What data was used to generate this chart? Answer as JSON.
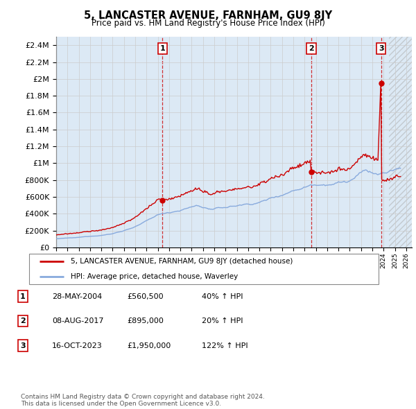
{
  "title": "5, LANCASTER AVENUE, FARNHAM, GU9 8JY",
  "subtitle": "Price paid vs. HM Land Registry's House Price Index (HPI)",
  "ytick_values": [
    0,
    200000,
    400000,
    600000,
    800000,
    1000000,
    1200000,
    1400000,
    1600000,
    1800000,
    2000000,
    2200000,
    2400000
  ],
  "ymax": 2500000,
  "xmin": 1995.0,
  "xmax": 2026.5,
  "transactions": [
    {
      "label": "1",
      "year": 2004.41,
      "price": 560500
    },
    {
      "label": "2",
      "year": 2017.6,
      "price": 895000
    },
    {
      "label": "3",
      "year": 2023.79,
      "price": 1950000
    }
  ],
  "transaction_details": [
    {
      "num": "1",
      "date": "28-MAY-2004",
      "price": "£560,500",
      "change": "40% ↑ HPI"
    },
    {
      "num": "2",
      "date": "08-AUG-2017",
      "price": "£895,000",
      "change": "20% ↑ HPI"
    },
    {
      "num": "3",
      "date": "16-OCT-2023",
      "price": "£1,950,000",
      "change": "122% ↑ HPI"
    }
  ],
  "legend_entries": [
    "5, LANCASTER AVENUE, FARNHAM, GU9 8JY (detached house)",
    "HPI: Average price, detached house, Waverley"
  ],
  "price_line_color": "#cc0000",
  "hpi_line_color": "#88aadd",
  "transaction_line_color": "#cc0000",
  "grid_color": "#cccccc",
  "background_color": "#dce9f5",
  "footnote": "Contains HM Land Registry data © Crown copyright and database right 2024.\nThis data is licensed under the Open Government Licence v3.0."
}
